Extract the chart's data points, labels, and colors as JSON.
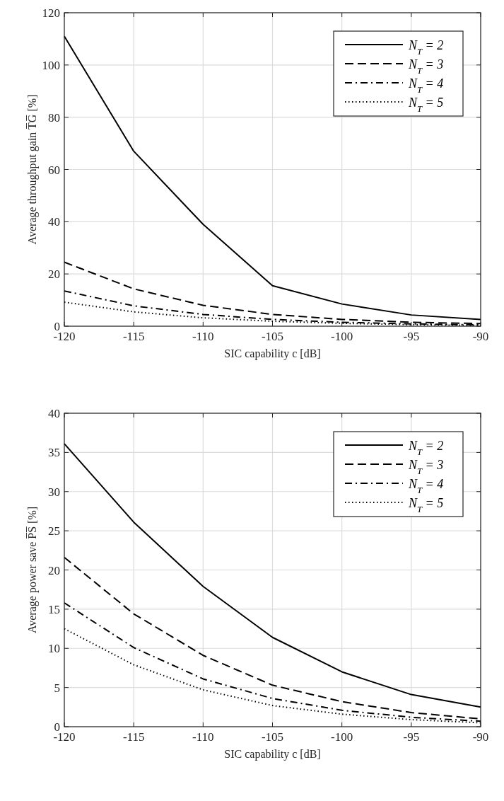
{
  "chart_data": [
    {
      "type": "line",
      "xlabel": "SIC capability c [dB]",
      "ylabel": "Average throughput gain T̅G̅ [%]",
      "x": [
        -120,
        -115,
        -110,
        -105,
        -100,
        -95,
        -90
      ],
      "xlim": [
        -120,
        -90
      ],
      "xticks": [
        -120,
        -115,
        -110,
        -105,
        -100,
        -95,
        -90
      ],
      "ylim": [
        0,
        120
      ],
      "yticks": [
        0,
        20,
        40,
        60,
        80,
        100,
        120
      ],
      "grid": true,
      "legend": "top right",
      "series": [
        {
          "name": "N$_{T}$ = 2",
          "color": "#000000",
          "line_style": "solid",
          "values": [
            111,
            67,
            39,
            15.5,
            8.5,
            4.3,
            2.6
          ]
        },
        {
          "name": "N$_{T}$ = 3",
          "color": "#000000",
          "line_style": "dashed",
          "values": [
            24.5,
            14.3,
            8,
            4.5,
            2.6,
            1.5,
            1
          ]
        },
        {
          "name": "N$_{T}$ = 4",
          "color": "#000000",
          "line_style": "dashdot",
          "values": [
            13.5,
            7.8,
            4.5,
            2.6,
            1.5,
            0.9,
            0.5
          ]
        },
        {
          "name": "N$_{T}$ = 5",
          "color": "#000000",
          "line_style": "dotted",
          "values": [
            9.2,
            5.5,
            3.2,
            1.9,
            1.1,
            0.6,
            0.3
          ]
        }
      ]
    },
    {
      "type": "line",
      "xlabel": "SIC capability c [dB]",
      "ylabel": "Average power save P̅S̅ [%]",
      "x": [
        -120,
        -115,
        -110,
        -105,
        -100,
        -95,
        -90
      ],
      "xlim": [
        -120,
        -90
      ],
      "xticks": [
        -120,
        -115,
        -110,
        -105,
        -100,
        -95,
        -90
      ],
      "ylim": [
        0,
        40
      ],
      "yticks": [
        0,
        5,
        10,
        15,
        20,
        25,
        30,
        35,
        40
      ],
      "grid": true,
      "legend": "top right",
      "series": [
        {
          "name": "N$_{T}$ = 2",
          "color": "#000000",
          "line_style": "solid",
          "values": [
            36.1,
            26.1,
            17.9,
            11.4,
            7,
            4.1,
            2.5
          ]
        },
        {
          "name": "N$_{T}$ = 3",
          "color": "#000000",
          "line_style": "dashed",
          "values": [
            21.6,
            14.4,
            9.1,
            5.3,
            3.2,
            1.8,
            1
          ]
        },
        {
          "name": "N$_{T}$ = 4",
          "color": "#000000",
          "line_style": "dashdot",
          "values": [
            15.8,
            10.1,
            6.1,
            3.6,
            2.1,
            1.2,
            0.7
          ]
        },
        {
          "name": "N$_{T}$ = 5",
          "color": "#000000",
          "line_style": "dotted",
          "values": [
            12.5,
            7.9,
            4.7,
            2.7,
            1.6,
            0.9,
            0.5
          ]
        }
      ]
    }
  ]
}
